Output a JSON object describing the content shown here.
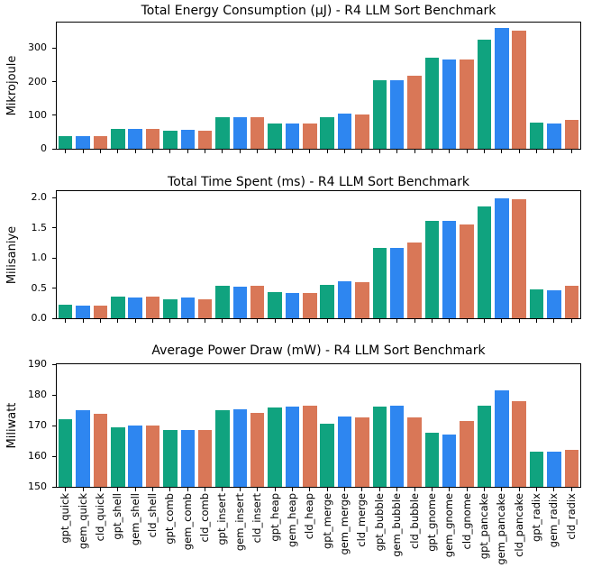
{
  "figure": {
    "background": "#ffffff",
    "text_color": "#000000"
  },
  "series_colors": {
    "gpt": "#10a37f",
    "gem": "#2e86f0",
    "cld": "#d97757"
  },
  "chart_data": [
    {
      "type": "bar",
      "title": "Total Energy Consumption (μJ) - R4 LLM Sort Benchmark",
      "ylabel": "Mikrojoule",
      "xlabel": "",
      "ytick_labels": [
        "0",
        "100",
        "200",
        "300"
      ],
      "ylim": [
        0,
        376
      ],
      "grid": false,
      "legend": "none",
      "show_x_labels": false,
      "categories": [
        "gpt_quick",
        "gem_quick",
        "cld_quick",
        "gpt_shell",
        "gem_shell",
        "cld_shell",
        "gpt_comb",
        "gem_comb",
        "cld_comb",
        "gpt_insert",
        "gem_insert",
        "cld_insert",
        "gpt_heap",
        "gem_heap",
        "cld_heap",
        "gpt_merge",
        "gem_merge",
        "cld_merge",
        "gpt_bubble",
        "gem_bubble",
        "cld_bubble",
        "gpt_gnome",
        "gem_gnome",
        "cld_gnome",
        "gpt_pancake",
        "gem_pancake",
        "cld_pancake",
        "gpt_radix",
        "gem_radix",
        "cld_radix"
      ],
      "values": [
        38,
        37,
        37,
        60,
        58,
        60,
        53,
        57,
        53,
        94,
        93,
        93,
        75,
        74,
        74,
        93,
        106,
        102,
        205,
        205,
        218,
        270,
        267,
        267,
        325,
        361,
        351,
        77,
        75,
        85
      ]
    },
    {
      "type": "bar",
      "title": "Total Time Spent (ms) - R4 LLM Sort Benchmark",
      "ylabel": "Milisaniye",
      "xlabel": "",
      "ytick_labels": [
        "0.0",
        "0.5",
        "1.0",
        "1.5",
        "2.0"
      ],
      "ylim": [
        0,
        2.11
      ],
      "grid": false,
      "legend": "none",
      "show_x_labels": false,
      "categories": [
        "gpt_quick",
        "gem_quick",
        "cld_quick",
        "gpt_shell",
        "gem_shell",
        "cld_shell",
        "gpt_comb",
        "gem_comb",
        "cld_comb",
        "gpt_insert",
        "gem_insert",
        "cld_insert",
        "gpt_heap",
        "gem_heap",
        "cld_heap",
        "gpt_merge",
        "gem_merge",
        "cld_merge",
        "gpt_bubble",
        "gem_bubble",
        "cld_bubble",
        "gpt_gnome",
        "gem_gnome",
        "cld_gnome",
        "gpt_pancake",
        "gem_pancake",
        "cld_pancake",
        "gpt_radix",
        "gem_radix",
        "cld_radix"
      ],
      "values": [
        0.23,
        0.21,
        0.21,
        0.36,
        0.34,
        0.36,
        0.32,
        0.34,
        0.32,
        0.54,
        0.52,
        0.54,
        0.43,
        0.42,
        0.42,
        0.55,
        0.61,
        0.6,
        1.17,
        1.17,
        1.26,
        1.61,
        1.62,
        1.55,
        1.86,
        1.99,
        1.97,
        0.48,
        0.47,
        0.54
      ]
    },
    {
      "type": "bar",
      "title": "Average Power Draw (mW) - R4 LLM Sort Benchmark",
      "ylabel": "Miliwatt",
      "xlabel": "",
      "ytick_labels": [
        "150",
        "160",
        "170",
        "180",
        "190"
      ],
      "ylim": [
        150,
        190
      ],
      "grid": false,
      "legend": "none",
      "show_x_labels": true,
      "categories": [
        "gpt_quick",
        "gem_quick",
        "cld_quick",
        "gpt_shell",
        "gem_shell",
        "cld_shell",
        "gpt_comb",
        "gem_comb",
        "cld_comb",
        "gpt_insert",
        "gem_insert",
        "cld_insert",
        "gpt_heap",
        "gem_heap",
        "cld_heap",
        "gpt_merge",
        "gem_merge",
        "cld_merge",
        "gpt_bubble",
        "gem_bubble",
        "cld_bubble",
        "gpt_gnome",
        "gem_gnome",
        "cld_gnome",
        "gpt_pancake",
        "gem_pancake",
        "cld_pancake",
        "gpt_radix",
        "gem_radix",
        "cld_radix"
      ],
      "values": [
        172.0,
        174.9,
        173.7,
        169.4,
        170.0,
        169.9,
        168.5,
        168.5,
        168.5,
        174.9,
        175.2,
        174.0,
        175.8,
        176.1,
        176.4,
        170.5,
        172.9,
        172.6,
        176.3,
        176.5,
        172.6,
        167.7,
        167.1,
        171.4,
        176.4,
        181.6,
        177.9,
        161.6,
        161.6,
        162.1
      ]
    }
  ]
}
